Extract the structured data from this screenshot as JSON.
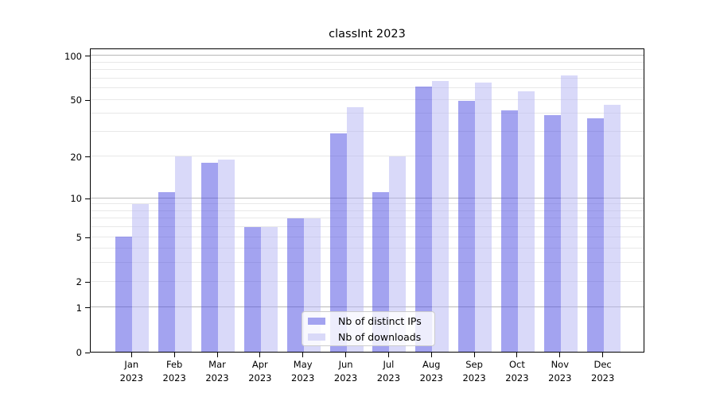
{
  "title": "classInt 2023",
  "chart_data": {
    "type": "bar",
    "title": "classInt 2023",
    "categories": [
      "Jan",
      "Feb",
      "Mar",
      "Apr",
      "May",
      "Jun",
      "Jul",
      "Aug",
      "Sep",
      "Oct",
      "Nov",
      "Dec"
    ],
    "category_year": "2023",
    "series": [
      {
        "name": "Nb of distinct IPs",
        "fill": "rgba(71,71,225,0.5)",
        "solid_color": "#a3a3f0",
        "values": [
          5,
          11,
          18,
          6,
          7,
          29,
          11,
          61,
          49,
          42,
          39,
          37
        ]
      },
      {
        "name": "Nb of downloads",
        "fill": "rgba(179,179,243,0.5)",
        "solid_color": "#d9d9f8",
        "values": [
          9,
          20,
          19,
          6,
          7,
          44,
          20,
          67,
          65,
          57,
          73,
          46
        ]
      }
    ],
    "xlabel": "",
    "ylabel": "",
    "yscale": "log1p",
    "ylim": [
      0,
      113
    ],
    "ytick_values": [
      0,
      1,
      2,
      5,
      10,
      20,
      50,
      100
    ],
    "ytick_labels": [
      "0",
      "1",
      "2",
      "5",
      "10",
      "20",
      "50",
      "100"
    ],
    "major_grid_values": [
      1,
      10,
      100
    ],
    "minor_grid_values": [
      2,
      3,
      4,
      5,
      6,
      7,
      8,
      9,
      20,
      30,
      40,
      50,
      60,
      70,
      80,
      90
    ],
    "grid": "on",
    "legend_position": "lower center"
  },
  "colors": {
    "bar_distinct_ips": "#a3a3f0",
    "bar_downloads": "#d9d9f8",
    "major_grid": "#b8b8b8",
    "minor_grid": "#e8e8e8",
    "axis": "#000000",
    "text": "#000000",
    "legend_bg": "rgba(255,255,255,0.8)",
    "legend_border": "#cccccc"
  }
}
